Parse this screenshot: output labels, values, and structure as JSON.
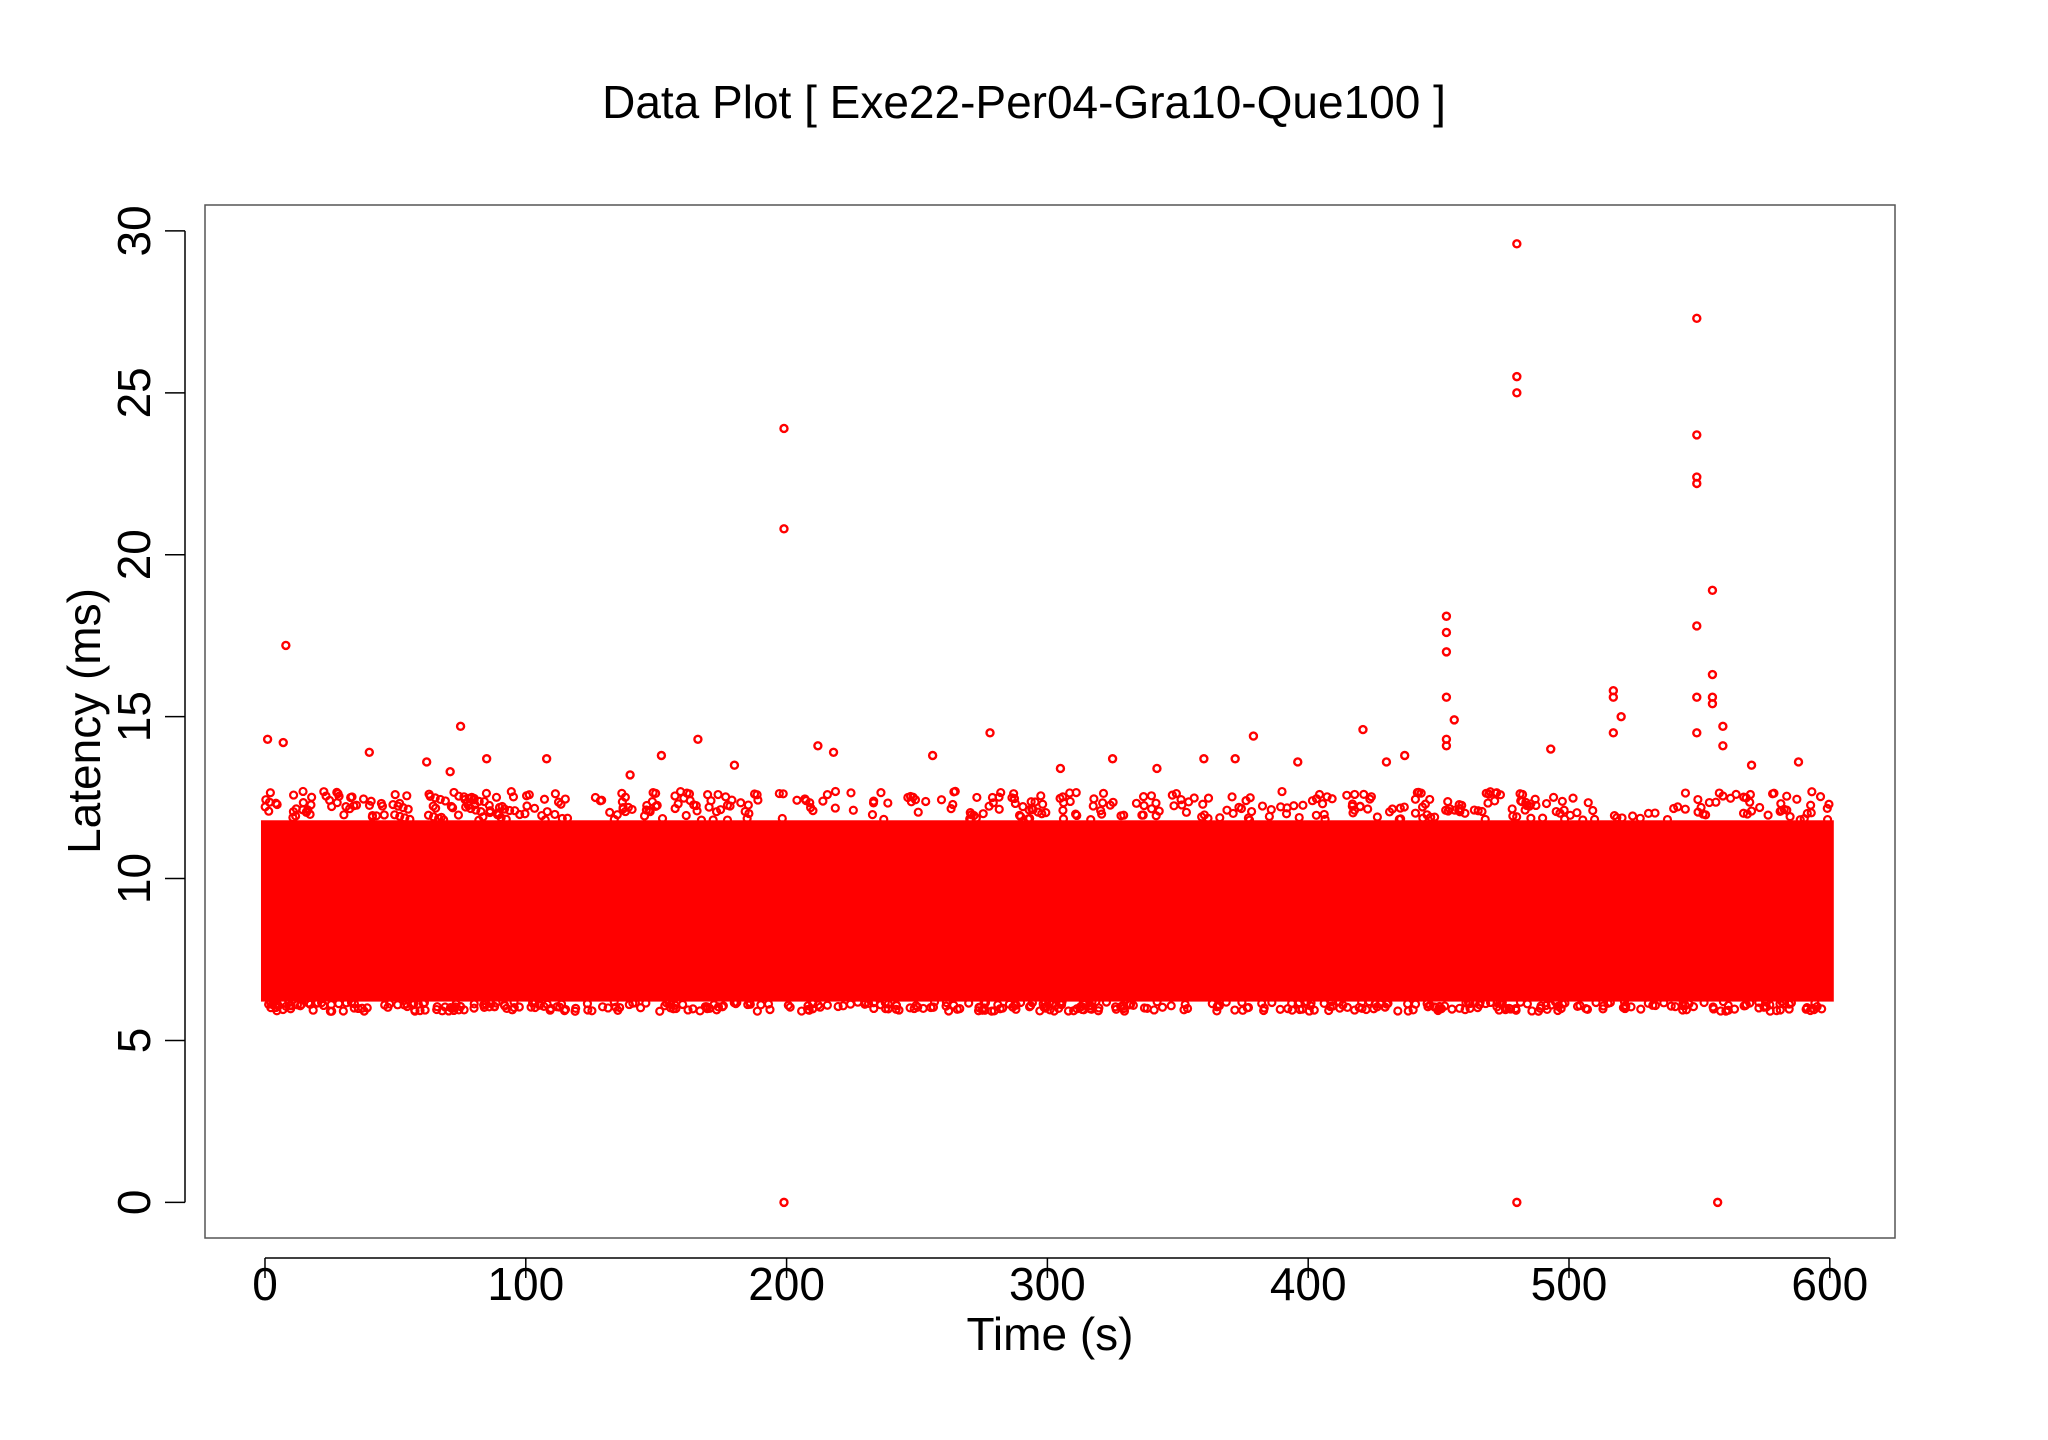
{
  "chart_data": {
    "type": "scatter",
    "title": "Data Plot [ Exe22-Per04-Gra10-Que100 ]",
    "xlabel": "Time (s)",
    "ylabel": "Latency (ms)",
    "xlim": [
      -23,
      625
    ],
    "ylim": [
      -1.1,
      30.8
    ],
    "x_ticks": [
      0,
      100,
      200,
      300,
      400,
      500,
      600
    ],
    "y_ticks": [
      0,
      5,
      10,
      15,
      20,
      25,
      30
    ],
    "grid": false,
    "legend": "none",
    "marker": "open-circle",
    "color": "#ff0000",
    "series": [
      {
        "dense_band": {
          "x": [
            0,
            600
          ],
          "y": [
            6.2,
            11.8
          ]
        },
        "points": [
          {
            "x": 1,
            "y": 14.3
          },
          {
            "x": 7,
            "y": 14.2
          },
          {
            "x": 8,
            "y": 17.2
          },
          {
            "x": 40,
            "y": 13.9
          },
          {
            "x": 62,
            "y": 13.6
          },
          {
            "x": 71,
            "y": 13.3
          },
          {
            "x": 75,
            "y": 14.7
          },
          {
            "x": 85,
            "y": 13.7
          },
          {
            "x": 108,
            "y": 13.7
          },
          {
            "x": 140,
            "y": 13.2
          },
          {
            "x": 152,
            "y": 13.8
          },
          {
            "x": 166,
            "y": 14.3
          },
          {
            "x": 180,
            "y": 13.5
          },
          {
            "x": 199,
            "y": 23.9
          },
          {
            "x": 199,
            "y": 20.8
          },
          {
            "x": 199,
            "y": 0
          },
          {
            "x": 212,
            "y": 14.1
          },
          {
            "x": 218,
            "y": 13.9
          },
          {
            "x": 256,
            "y": 13.8
          },
          {
            "x": 278,
            "y": 14.5
          },
          {
            "x": 305,
            "y": 13.4
          },
          {
            "x": 325,
            "y": 13.7
          },
          {
            "x": 342,
            "y": 13.4
          },
          {
            "x": 360,
            "y": 13.7
          },
          {
            "x": 372,
            "y": 13.7
          },
          {
            "x": 379,
            "y": 14.4
          },
          {
            "x": 396,
            "y": 13.6
          },
          {
            "x": 421,
            "y": 14.6
          },
          {
            "x": 430,
            "y": 13.6
          },
          {
            "x": 437,
            "y": 13.8
          },
          {
            "x": 453,
            "y": 18.1
          },
          {
            "x": 453,
            "y": 17.6
          },
          {
            "x": 453,
            "y": 17.0
          },
          {
            "x": 453,
            "y": 15.6
          },
          {
            "x": 453,
            "y": 14.3
          },
          {
            "x": 453,
            "y": 14.1
          },
          {
            "x": 456,
            "y": 14.9
          },
          {
            "x": 480,
            "y": 29.6
          },
          {
            "x": 480,
            "y": 25.5
          },
          {
            "x": 480,
            "y": 25.0
          },
          {
            "x": 480,
            "y": 0
          },
          {
            "x": 493,
            "y": 14.0
          },
          {
            "x": 517,
            "y": 15.8
          },
          {
            "x": 517,
            "y": 15.6
          },
          {
            "x": 517,
            "y": 14.5
          },
          {
            "x": 520,
            "y": 15.0
          },
          {
            "x": 549,
            "y": 27.3
          },
          {
            "x": 549,
            "y": 23.7
          },
          {
            "x": 549,
            "y": 22.4
          },
          {
            "x": 549,
            "y": 22.2
          },
          {
            "x": 549,
            "y": 17.8
          },
          {
            "x": 549,
            "y": 15.6
          },
          {
            "x": 549,
            "y": 14.5
          },
          {
            "x": 555,
            "y": 18.9
          },
          {
            "x": 555,
            "y": 16.3
          },
          {
            "x": 555,
            "y": 15.6
          },
          {
            "x": 555,
            "y": 15.4
          },
          {
            "x": 557,
            "y": 0
          },
          {
            "x": 559,
            "y": 14.7
          },
          {
            "x": 559,
            "y": 14.1
          },
          {
            "x": 570,
            "y": 13.5
          },
          {
            "x": 588,
            "y": 13.6
          }
        ]
      }
    ]
  }
}
